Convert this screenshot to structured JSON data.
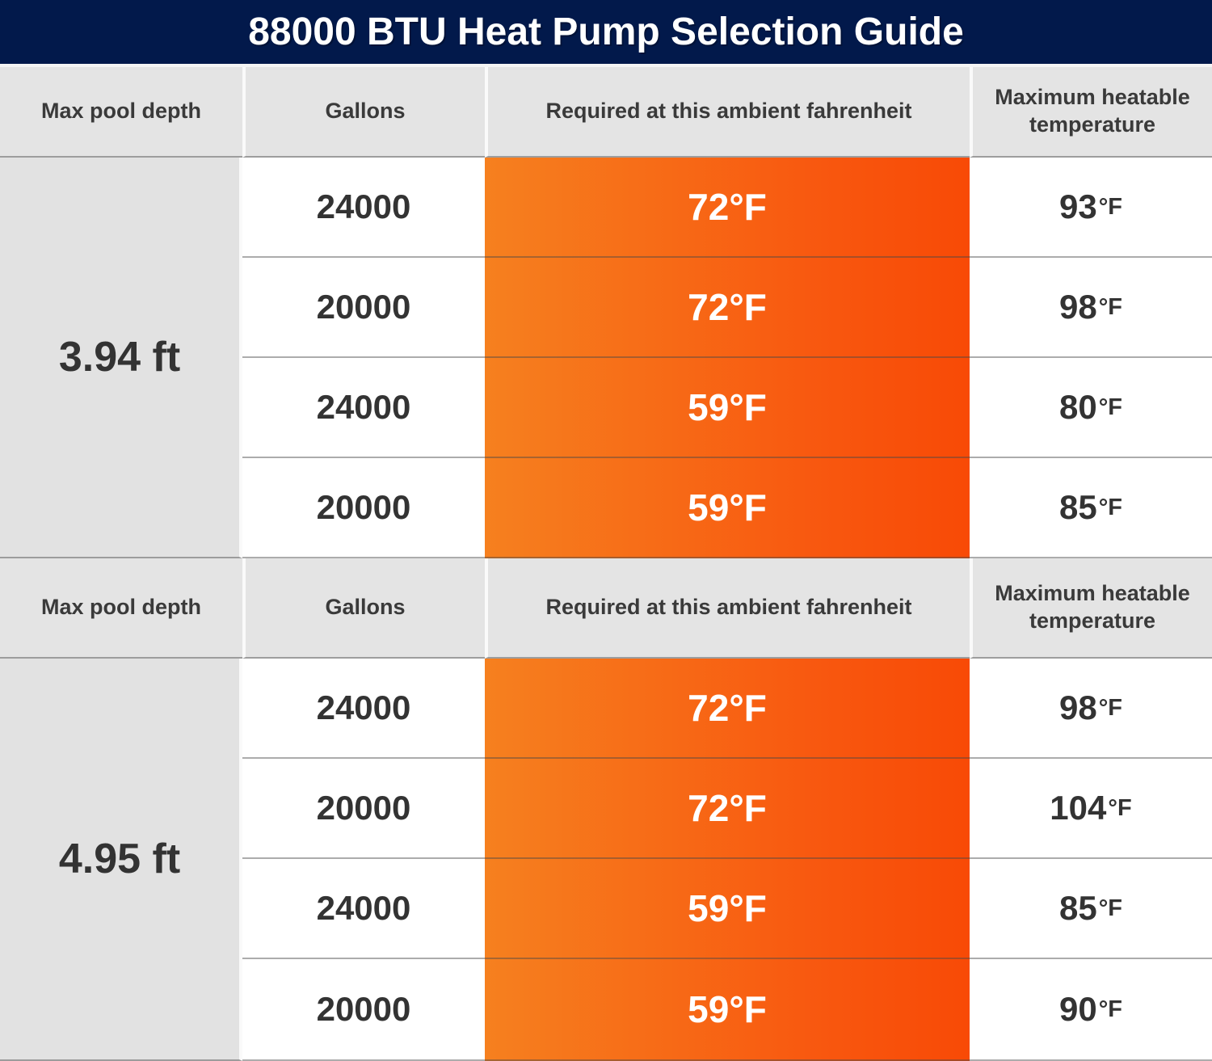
{
  "title": "88000 BTU Heat Pump Selection Guide",
  "colors": {
    "title_bg": "#02194b",
    "title_text": "#ffffff",
    "header_bg": "#e4e4e4",
    "depth_bg": "#e2e2e2",
    "gradient_left": "#f6801f",
    "gradient_right": "#f84a06",
    "text_dark": "#333333",
    "ambient_text": "#ffffff"
  },
  "columns": {
    "depth": "Max pool depth",
    "gallons": "Gallons",
    "ambient": "Required at this ambient fahrenheit",
    "max_temp": "Maximum heatable temperature"
  },
  "sections": [
    {
      "depth": "3.94 ft",
      "rows": [
        {
          "gallons": "24000",
          "ambient": "72°F",
          "max": "93",
          "unit": "°F"
        },
        {
          "gallons": "20000",
          "ambient": "72°F",
          "max": "98",
          "unit": "°F"
        },
        {
          "gallons": "24000",
          "ambient": "59°F",
          "max": "80",
          "unit": "°F"
        },
        {
          "gallons": "20000",
          "ambient": "59°F",
          "max": "85",
          "unit": "°F"
        }
      ]
    },
    {
      "depth": "4.95 ft",
      "rows": [
        {
          "gallons": "24000",
          "ambient": "72°F",
          "max": "98",
          "unit": "°F"
        },
        {
          "gallons": "20000",
          "ambient": "72°F",
          "max": "104",
          "unit": "°F"
        },
        {
          "gallons": "24000",
          "ambient": "59°F",
          "max": "85",
          "unit": "°F"
        },
        {
          "gallons": "20000",
          "ambient": "59°F",
          "max": "90",
          "unit": "°F"
        }
      ]
    }
  ],
  "chart_data": {
    "type": "table",
    "title": "88000 BTU Heat Pump Selection Guide",
    "columns": [
      "Max pool depth",
      "Gallons",
      "Required at this ambient fahrenheit",
      "Maximum heatable temperature"
    ],
    "rows": [
      [
        "3.94 ft",
        24000,
        "72°F",
        "93°F"
      ],
      [
        "3.94 ft",
        20000,
        "72°F",
        "98°F"
      ],
      [
        "3.94 ft",
        24000,
        "59°F",
        "80°F"
      ],
      [
        "3.94 ft",
        20000,
        "59°F",
        "85°F"
      ],
      [
        "4.95 ft",
        24000,
        "72°F",
        "98°F"
      ],
      [
        "4.95 ft",
        20000,
        "72°F",
        "104°F"
      ],
      [
        "4.95 ft",
        24000,
        "59°F",
        "85°F"
      ],
      [
        "4.95 ft",
        20000,
        "59°F",
        "90°F"
      ]
    ],
    "layout_hints": {
      "ambient_column_style": "orange horizontal gradient, white bold text",
      "depth_cells_merged": true,
      "header_repeated_per_section": true
    }
  }
}
